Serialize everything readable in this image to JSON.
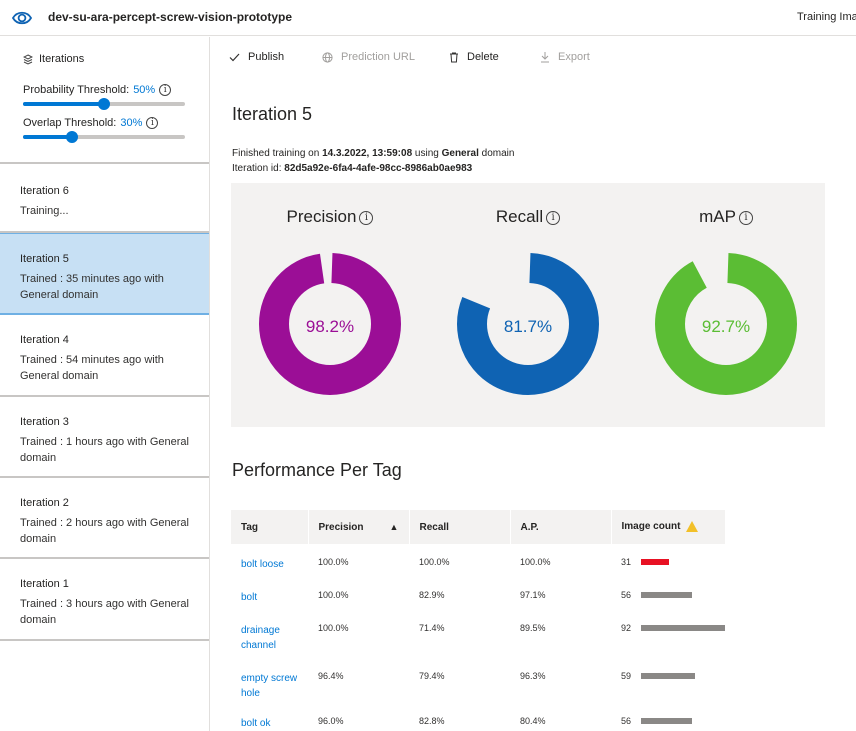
{
  "header": {
    "project_name": "dev-su-ara-percept-screw-vision-prototype",
    "right_text": "Training Ima"
  },
  "sidebar": {
    "title": "Iterations",
    "probability_label": "Probability Threshold:",
    "probability_value": "50%",
    "probability_fraction": 0.5,
    "overlap_label": "Overlap Threshold:",
    "overlap_value": "30%",
    "overlap_fraction": 0.3,
    "iterations": [
      {
        "title": "Iteration 6",
        "status": "Training..."
      },
      {
        "title": "Iteration 5",
        "status": "Trained : 35 minutes ago with General domain"
      },
      {
        "title": "Iteration 4",
        "status": "Trained : 54 minutes ago with General domain"
      },
      {
        "title": "Iteration 3",
        "status": "Trained : 1 hours ago with General domain"
      },
      {
        "title": "Iteration 2",
        "status": "Trained : 2 hours ago with General domain"
      },
      {
        "title": "Iteration 1",
        "status": "Trained : 3 hours ago with General domain"
      }
    ],
    "selected_iteration": "Iteration 5"
  },
  "toolbar": {
    "publish": "Publish",
    "prediction_url": "Prediction URL",
    "delete": "Delete",
    "export": "Export"
  },
  "main": {
    "iteration_title": "Iteration 5",
    "finished_prefix": "Finished training on",
    "finished_date": "14.3.2022, 13:59:08",
    "using_text": "using",
    "domain": "General",
    "domain_suffix": "domain",
    "iteration_id_label": "Iteration id:",
    "iteration_id": "82d5a92e-6fa4-4afe-98cc-8986ab0ae983"
  },
  "metrics": [
    {
      "label": "Precision",
      "value_text": "98.2%",
      "value": 0.982,
      "color": "#9b0e96"
    },
    {
      "label": "Recall",
      "value_text": "81.7%",
      "value": 0.817,
      "color": "#0f63b3"
    },
    {
      "label": "mAP",
      "value_text": "92.7%",
      "value": 0.927,
      "color": "#5bbd34"
    }
  ],
  "performance": {
    "title": "Performance Per Tag",
    "columns": [
      "Tag",
      "Precision",
      "Recall",
      "A.P.",
      "Image count"
    ],
    "rows": [
      {
        "tag": "bolt loose",
        "precision": "100.0%",
        "recall": "100.0%",
        "ap": "100.0%",
        "count": 31,
        "bar_color": "#e81123"
      },
      {
        "tag": "bolt",
        "precision": "100.0%",
        "recall": "82.9%",
        "ap": "97.1%",
        "count": 56,
        "bar_color": "#8a8886"
      },
      {
        "tag": "drainage channel",
        "precision": "100.0%",
        "recall": "71.4%",
        "ap": "89.5%",
        "count": 92,
        "bar_color": "#8a8886"
      },
      {
        "tag": "empty screw hole",
        "precision": "96.4%",
        "recall": "79.4%",
        "ap": "96.3%",
        "count": 59,
        "bar_color": "#8a8886"
      },
      {
        "tag": "bolt ok",
        "precision": "96.0%",
        "recall": "82.8%",
        "ap": "80.4%",
        "count": 56,
        "bar_color": "#8a8886"
      }
    ]
  }
}
